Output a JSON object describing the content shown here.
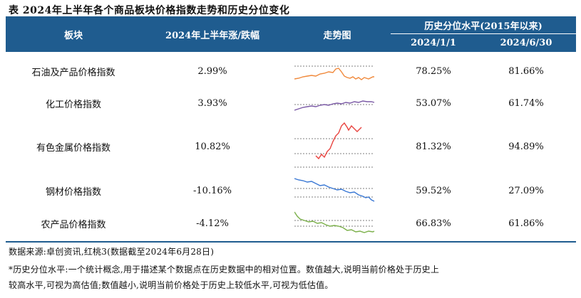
{
  "title": "表 2024年上半年各个商品板块价格指数走势和历史分位变化",
  "header": {
    "sector": "板块",
    "change": "2024年上半年涨/跌幅",
    "trend": "走势图",
    "percentile": "历史分位水平(2015年以来)",
    "date1": "2024/1/1",
    "date2": "2024/6/30"
  },
  "rows": [
    {
      "name": "石油及产品价格指数",
      "change": "2.99%",
      "p1": "78.25%",
      "p2": "81.66%",
      "color": "#f0883a"
    },
    {
      "name": "化工价格指数",
      "change": "3.93%",
      "p1": "53.07%",
      "p2": "61.74%",
      "color": "#7b5aa6"
    },
    {
      "name": "有色金属价格指数",
      "change": "10.82%",
      "p1": "81.32%",
      "p2": "94.89%",
      "color": "#e8433f"
    },
    {
      "name": "钢材价格指数",
      "change": "-10.16%",
      "p1": "59.52%",
      "p2": "27.09%",
      "color": "#3a78d4"
    },
    {
      "name": "农产品价格指数",
      "change": "-4.12%",
      "p1": "66.83%",
      "p2": "61.86%",
      "color": "#7bb04a"
    }
  ],
  "footnotes": {
    "source": "数据来源:卓创资讯,红桃3(数据截至2024年6月28日)",
    "def1": "*历史分位水平:一个统计概念,用于描述某个数据点在历史数据中的相对位置。数值越大,说明当前价格处于历史上",
    "def2": "较高水平,可视为高估值;数值越小,说明当前价格处于历史上较低水平,可视为低估值。"
  }
}
